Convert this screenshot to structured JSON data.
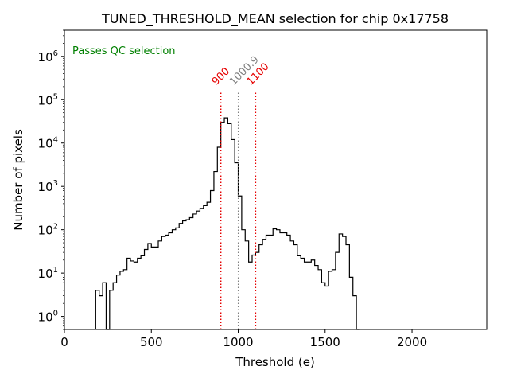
{
  "chart_data": {
    "type": "histogram",
    "title": "TUNED_THRESHOLD_MEAN selection for chip 0x17758",
    "xlabel": "Threshold (e)",
    "ylabel": "Number of pixels",
    "xlim": [
      0,
      2430
    ],
    "ylim": [
      0.5,
      4000000
    ],
    "yscale": "log",
    "x_ticks": [
      {
        "value": 0,
        "label": "0"
      },
      {
        "value": 500,
        "label": "500"
      },
      {
        "value": 1000,
        "label": "1000"
      },
      {
        "value": 1500,
        "label": "1500"
      },
      {
        "value": 2000,
        "label": "2000"
      }
    ],
    "y_ticks": [
      {
        "value": 1,
        "base": "10",
        "exp": "0"
      },
      {
        "value": 10,
        "base": "10",
        "exp": "1"
      },
      {
        "value": 100,
        "base": "10",
        "exp": "2"
      },
      {
        "value": 1000,
        "base": "10",
        "exp": "3"
      },
      {
        "value": 10000,
        "base": "10",
        "exp": "4"
      },
      {
        "value": 100000,
        "base": "10",
        "exp": "5"
      },
      {
        "value": 1000000,
        "base": "10",
        "exp": "6"
      }
    ],
    "bin_start": 180,
    "bin_width": 20,
    "counts": [
      4,
      3,
      6,
      0,
      4,
      6,
      9,
      11,
      12,
      22,
      19,
      18,
      22,
      25,
      35,
      48,
      40,
      40,
      55,
      70,
      75,
      85,
      100,
      110,
      140,
      160,
      170,
      190,
      230,
      270,
      310,
      360,
      430,
      800,
      2200,
      8000,
      30000,
      38000,
      28000,
      12000,
      3500,
      600,
      100,
      55,
      18,
      26,
      30,
      45,
      60,
      75,
      75,
      105,
      100,
      85,
      85,
      75,
      55,
      45,
      25,
      22,
      18,
      18,
      20,
      15,
      12,
      6,
      5,
      11,
      12,
      30,
      80,
      70,
      45,
      8,
      3,
      0
    ],
    "vlines": [
      {
        "x": 900,
        "label": "900",
        "color": "#e60000",
        "style": "dotted"
      },
      {
        "x": 1000.9,
        "label": "1000.9",
        "color": "#808080",
        "style": "dotted"
      },
      {
        "x": 1100,
        "label": "1100",
        "color": "#e60000",
        "style": "dotted"
      }
    ],
    "annotation": {
      "text": "Passes QC selection",
      "color": "#008000"
    },
    "line_color": "#000000"
  }
}
